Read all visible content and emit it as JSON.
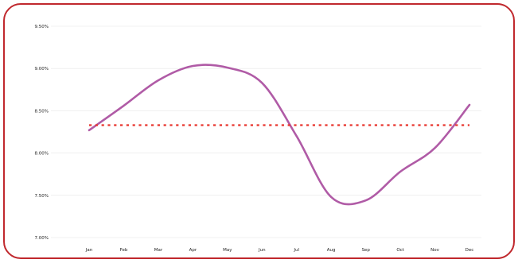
{
  "chart_data": {
    "type": "line",
    "title": "",
    "xlabel": "",
    "ylabel": "",
    "categories": [
      "Jan",
      "Feb",
      "Mar",
      "Apr",
      "May",
      "Jun",
      "Jul",
      "Aug",
      "Sep",
      "Oct",
      "Nov",
      "Dec"
    ],
    "y_ticks": [
      "7.00%",
      "7.50%",
      "8.00%",
      "8.50%",
      "9.00%",
      "9.50%"
    ],
    "ylim": [
      7.0,
      9.5
    ],
    "grid": true,
    "legend": "none",
    "series": [
      {
        "style": "solid",
        "color": "#b05ba6",
        "values": [
          8.27,
          8.56,
          8.86,
          9.03,
          9.01,
          8.83,
          8.2,
          7.48,
          7.44,
          7.78,
          8.06,
          8.57
        ]
      },
      {
        "style": "dotted",
        "color": "#e8332c",
        "values": [
          8.33,
          8.33,
          8.33,
          8.33,
          8.33,
          8.33,
          8.33,
          8.33,
          8.33,
          8.33,
          8.33,
          8.33
        ]
      }
    ]
  },
  "colors": {
    "frame_border": "#c0282d",
    "gridline": "#e6e6e6",
    "axis_text": "#222222"
  }
}
